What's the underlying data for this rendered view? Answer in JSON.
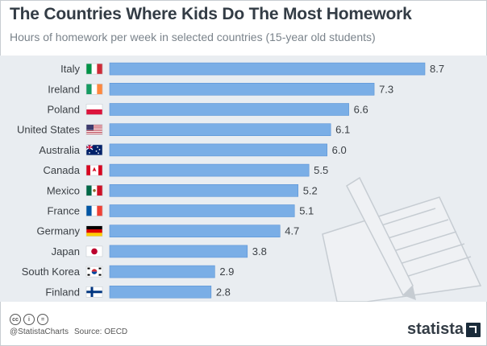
{
  "header": {
    "title": "The Countries Where Kids Do The Most Homework",
    "subtitle": "Hours of homework per week in selected countries (15-year old students)"
  },
  "footer": {
    "handle": "@StatistaCharts",
    "source": "Source: OECD",
    "brand": "statista",
    "license_icons": [
      "cc-icon",
      "person-icon",
      "equals-icon"
    ]
  },
  "colors": {
    "bar": "#7aaee6",
    "bar_stroke": "#5b94d6",
    "plot_bg": "#e9edf1",
    "label": "#3a3f44",
    "title": "#333c45"
  },
  "chart_data": {
    "type": "bar",
    "orientation": "horizontal",
    "title": "The Countries Where Kids Do The Most Homework",
    "subtitle": "Hours of homework per week in selected countries (15-year old students)",
    "categories": [
      "Italy",
      "Ireland",
      "Poland",
      "United States",
      "Australia",
      "Canada",
      "Mexico",
      "France",
      "Germany",
      "Japan",
      "South Korea",
      "Finland"
    ],
    "values": [
      8.7,
      7.3,
      6.6,
      6.1,
      6.0,
      5.5,
      5.2,
      5.1,
      4.7,
      3.8,
      2.9,
      2.8
    ],
    "value_labels": [
      "8.7",
      "7.3",
      "6.6",
      "6.1",
      "6.0",
      "5.5",
      "5.2",
      "5.1",
      "4.7",
      "3.8",
      "2.9",
      "2.8"
    ],
    "flags": [
      "italy",
      "ireland",
      "poland",
      "usa",
      "australia",
      "canada",
      "mexico",
      "france",
      "germany",
      "japan",
      "south-korea",
      "finland"
    ],
    "xlim": [
      0,
      8.7
    ],
    "grid": false,
    "legend": "none"
  }
}
